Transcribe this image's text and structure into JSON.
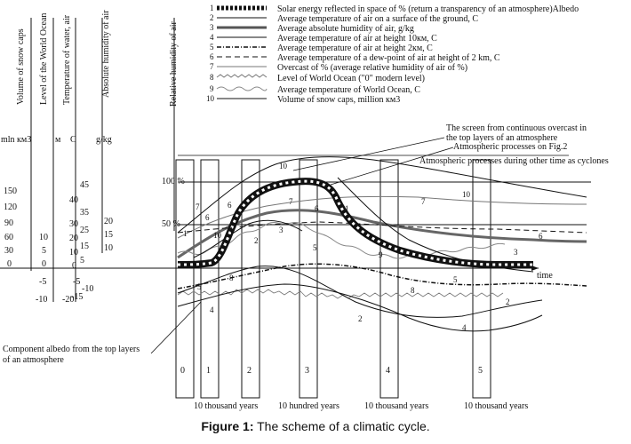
{
  "legend": [
    {
      "num": "1",
      "text": "Solar energy reflected in space of % (return a transparency of an atmosphere)Albedo"
    },
    {
      "num": "2",
      "text": "Average temperature of air on a surface of the ground, C"
    },
    {
      "num": "3",
      "text": "Average absolute humidity of air, g/kg"
    },
    {
      "num": "4",
      "text": "Average temperature of air at height 10км, C"
    },
    {
      "num": "5",
      "text": "Average temperature of air at height 2км, C"
    },
    {
      "num": "6",
      "text": "Average temperature of a dew-point of air at height of 2 km, C"
    },
    {
      "num": "7",
      "text": "Overcast of % (average relative humidity of air of %)"
    },
    {
      "num": "8",
      "text": "Level of World Ocean (\"0\" modern level)"
    },
    {
      "num": "9",
      "text": "Average temperature of World Ocean, C"
    },
    {
      "num": "10",
      "text": "Volume of snow caps, million км3"
    }
  ],
  "axes": {
    "snow": {
      "title": "Volume of snow caps",
      "unit": "mln км3",
      "ticks": [
        "150",
        "120",
        "90",
        "60",
        "30",
        "0"
      ]
    },
    "ocean": {
      "title": "Level of the World Ocean",
      "unit": "м",
      "ticks": [
        "10",
        "5",
        "0",
        "-5",
        "-10"
      ]
    },
    "water": {
      "title": "Temperature of water, air",
      "unit": "C",
      "ticks": [
        "45",
        "40",
        "35",
        "30",
        "25",
        "20",
        "15",
        "10",
        "5",
        "0",
        "-5",
        "-10",
        "-15",
        "-20"
      ]
    },
    "humidity": {
      "title": "Absolute humidity of air",
      "unit": "g/kg",
      "ticks": [
        "20",
        "15",
        "10"
      ]
    },
    "relhum": {
      "title": "Relative humidity of air"
    }
  },
  "levels": {
    "p100": "100 %",
    "p50": "50 %"
  },
  "time_label": "time",
  "annotations": {
    "screen_line1": "The screen from continuous overcast in",
    "screen_line2": "the top layers of an atmosphere",
    "fig2": "Atmospheric processes on Fig.2",
    "cyclones": "Atmospheric processes during other time as cyclones",
    "albedo_line1": "Component albedo from the top layers",
    "albedo_line2": "of an atmosphere"
  },
  "phases": [
    "0",
    "1",
    "2",
    "3",
    "4",
    "5"
  ],
  "durations": [
    "10 thousand years",
    "10 hundred years",
    "10 thousand years",
    "10 thousand years"
  ],
  "curve_numbers": [
    "1",
    "2",
    "3",
    "4",
    "5",
    "6",
    "7",
    "8",
    "9",
    "10"
  ],
  "caption": {
    "bold": "Figure 1:",
    "rest": " The scheme of a climatic cycle."
  }
}
